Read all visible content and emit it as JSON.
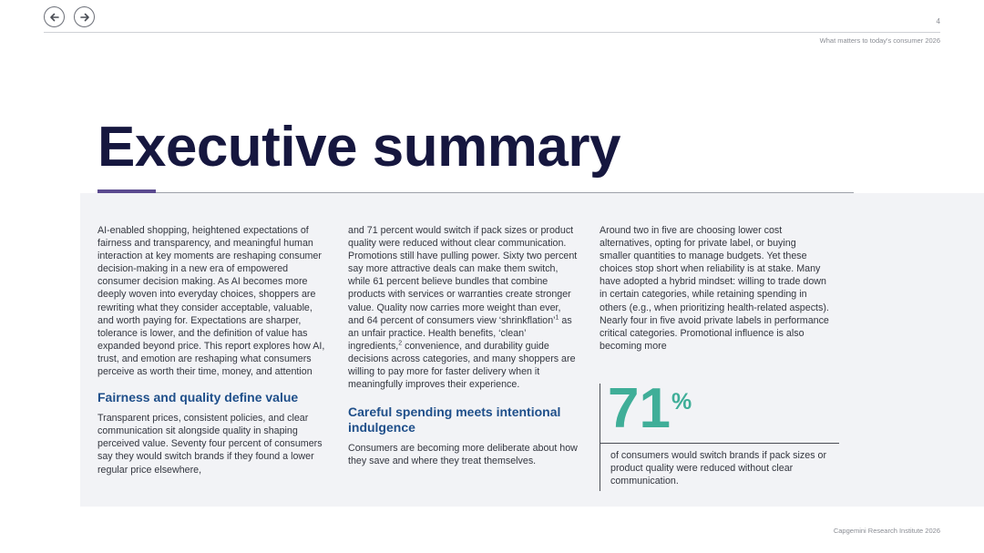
{
  "header": {
    "page_number": "4",
    "running_title": "What matters to today's consumer 2026"
  },
  "nav": {
    "prev_icon": "arrow-left-icon",
    "next_icon": "arrow-right-icon"
  },
  "title": "Executive summary",
  "columns": {
    "col1": {
      "intro": "AI-enabled shopping, heightened expectations of fairness and transparency, and meaningful human interaction at key moments are reshaping consumer decision-making in a new era of empowered consumer decision making. As AI becomes more deeply woven into everyday choices, shoppers are rewriting what they consider acceptable, valuable, and worth paying for. Expectations are sharper, tolerance is lower, and the definition of value has expanded beyond price. This report explores how AI, trust, and emotion are reshaping what consumers perceive as worth their time, money, and attention",
      "heading": "Fairness and quality define value",
      "body": "Transparent prices, consistent policies, and clear communication sit alongside quality in shaping perceived value. Seventy four percent of consumers say they would switch brands if they found a lower regular price elsewhere,"
    },
    "col2": {
      "body_a": "and 71 percent would switch if pack sizes or product quality were reduced without clear communication. Promotions still have pulling power. Sixty two percent say more attractive deals can make them switch, while 61 percent believe bundles that combine products with services or warranties create stronger value. Quality now carries more weight than ever, and 64 percent of consumers view ‘shrinkflation’",
      "sup_a": "1",
      "body_b": " as an unfair practice. Health benefits, ‘clean’ ingredients,",
      "sup_b": "2",
      "body_c": " convenience, and durability guide decisions across categories, and many shoppers are willing to pay more for faster delivery when it meaningfully improves their experience.",
      "heading": "Careful spending meets intentional indulgence",
      "body_d": "Consumers are becoming more deliberate about how they save and where they treat themselves."
    },
    "col3": {
      "body": "Around two in five are choosing lower cost alternatives, opting for private label, or buying smaller quantities to manage budgets. Yet these choices stop short when reliability is at stake. Many have adopted a hybrid mindset: willing to trade down in certain categories, while retaining spending in others (e.g., when prioritizing health-related aspects). Nearly four in five avoid private labels in performance critical categories. Promotional influence is also becoming more"
    }
  },
  "stat": {
    "value": "71",
    "unit": "%",
    "caption": "of consumers would switch brands if pack sizes or product quality were reduced without clear communication."
  },
  "footer": "Capgemini Research Institute 2026",
  "colors": {
    "title": "#16173f",
    "heading": "#1f4f8a",
    "stat": "#3fae98",
    "accent": "#5b4a8f",
    "panel": "#f2f3f6"
  }
}
